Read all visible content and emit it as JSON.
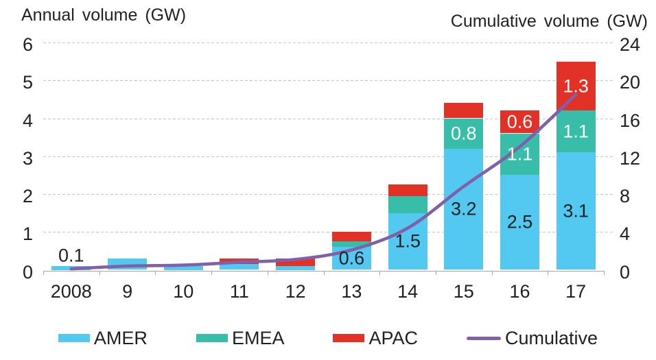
{
  "chart_data": {
    "type": "bar",
    "subtype": "stacked-columns-with-cumulative-line",
    "categories": [
      "2008",
      "9",
      "10",
      "11",
      "12",
      "13",
      "14",
      "15",
      "16",
      "17"
    ],
    "series": [
      {
        "name": "AMER",
        "color": "#53C8F0",
        "label_color": "#212121",
        "values": [
          0.1,
          0.3,
          0.1,
          0.15,
          0.1,
          0.6,
          1.5,
          3.2,
          2.5,
          3.1
        ],
        "labels": [
          "0.1",
          "",
          "",
          "",
          "",
          "0.6",
          "1.5",
          "3.2",
          "2.5",
          "3.1"
        ]
      },
      {
        "name": "EMEA",
        "color": "#38BDA9",
        "label_color": "#ffffff",
        "values": [
          0,
          0,
          0,
          0,
          0,
          0.15,
          0.45,
          0.8,
          1.1,
          1.1
        ],
        "labels": [
          "",
          "",
          "",
          "",
          "",
          "",
          "",
          "0.8",
          "1.1",
          "1.1"
        ]
      },
      {
        "name": "APAC",
        "color": "#E23228",
        "label_color": "#ffffff",
        "values": [
          0,
          0,
          0,
          0.15,
          0.2,
          0.25,
          0.3,
          0.4,
          0.6,
          1.3
        ],
        "labels": [
          "",
          "",
          "",
          "",
          "",
          "",
          "",
          "",
          "0.6",
          "1.3"
        ]
      }
    ],
    "line_series": {
      "name": "Cumulative",
      "color": "#8060A8",
      "axis": "right",
      "values": [
        0.1,
        0.4,
        0.5,
        0.8,
        1.1,
        2.1,
        4.4,
        8.8,
        13.0,
        18.5
      ]
    },
    "left_axis": {
      "title": "Annual volume (GW)",
      "min": 0,
      "max": 6,
      "step": 1,
      "tick_labels": [
        "6",
        "5",
        "4",
        "3",
        "2",
        "1",
        "0"
      ]
    },
    "right_axis": {
      "title": "Cumulative volume (GW)",
      "min": 0,
      "max": 24,
      "step": 4,
      "tick_labels": [
        "24",
        "20",
        "16",
        "12",
        "8",
        "4",
        "0"
      ]
    },
    "grid": true,
    "legend": {
      "position": "bottom",
      "items": [
        {
          "label": "AMER",
          "color": "#53C8F0",
          "marker": "box"
        },
        {
          "label": "EMEA",
          "color": "#38BDA9",
          "marker": "box"
        },
        {
          "label": "APAC",
          "color": "#E23228",
          "marker": "box"
        },
        {
          "label": "Cumulative",
          "color": "#8060A8",
          "marker": "line"
        }
      ]
    }
  }
}
